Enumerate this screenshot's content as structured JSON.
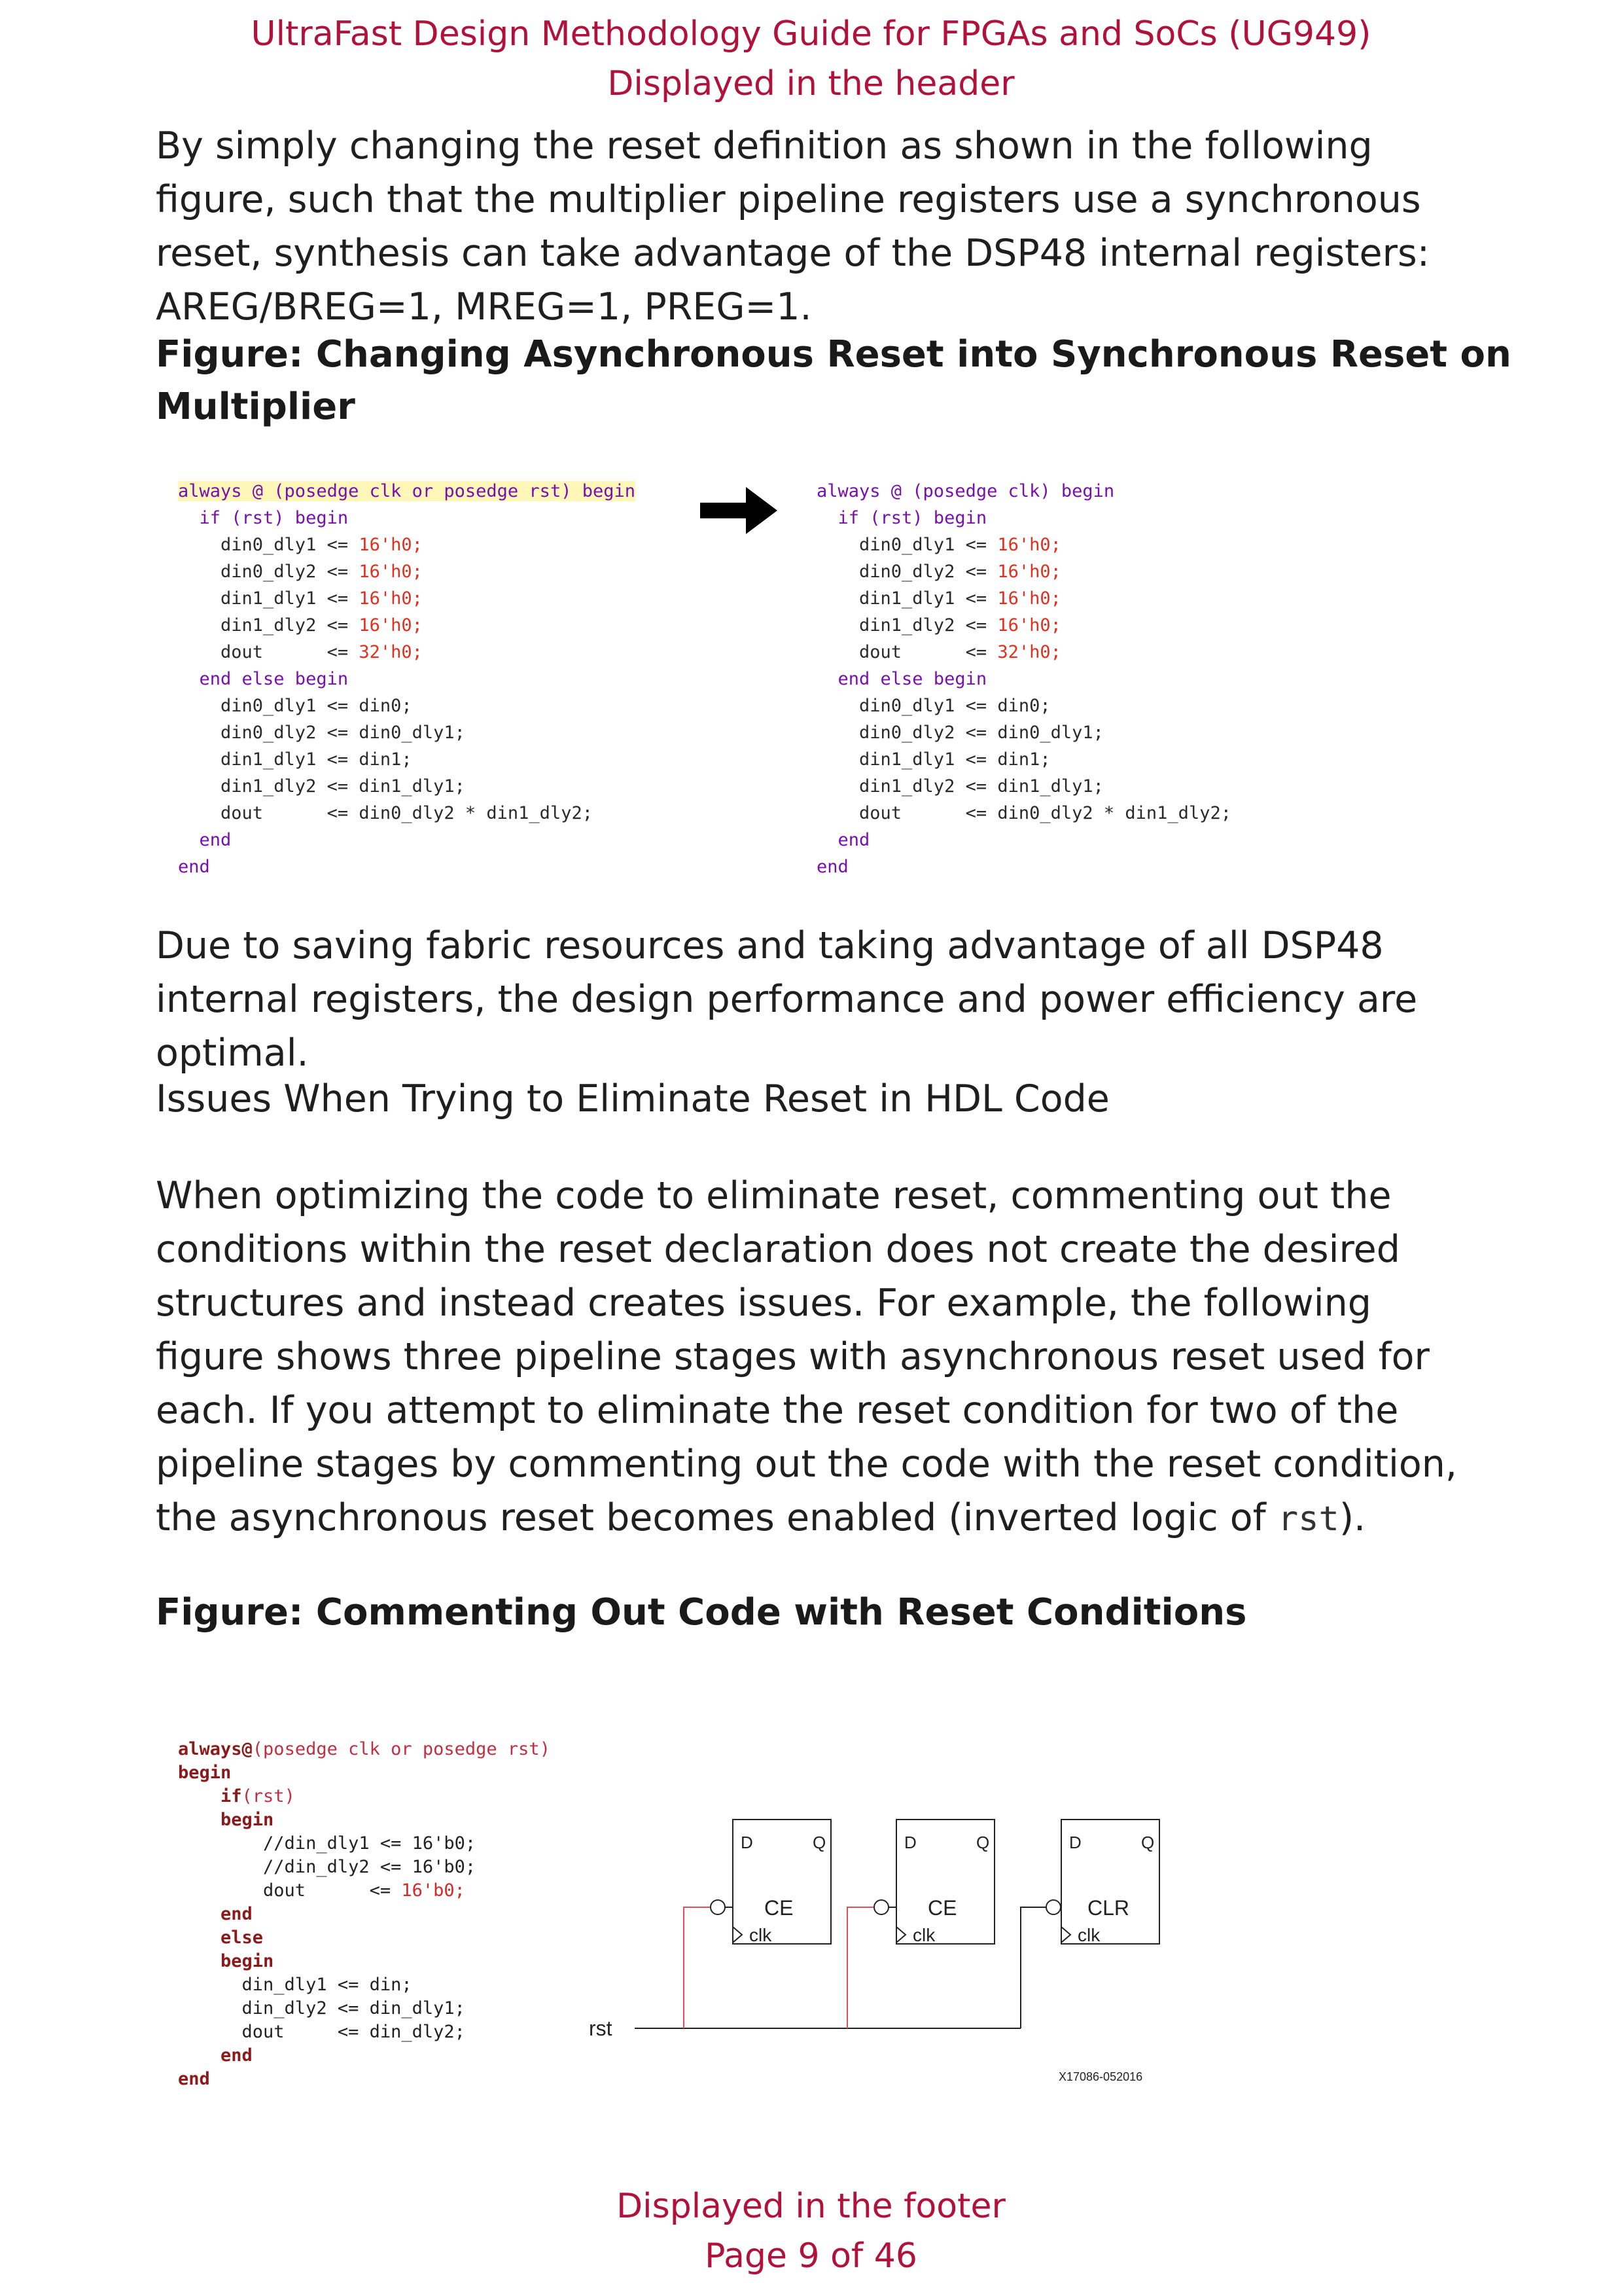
{
  "header": {
    "line1": "UltraFast Design Methodology Guide for FPGAs and SoCs (UG949)",
    "line2": "Displayed in the header"
  },
  "para1": "By simply changing the reset definition as shown in the following figure, such that the multiplier pipeline registers use a synchronous reset, synthesis can take advantage of the DSP48 internal registers: AREG/BREG=1, MREG=1, PREG=1.",
  "figure1": {
    "title": "Figure: Changing Asynchronous Reset into Synchronous Reset on Multiplier",
    "left_sensitivity": "always @ (posedge clk or posedge rst) begin",
    "right_sensitivity": "always @ (posedge clk) begin",
    "if_line": "  if (rst) begin",
    "reset_lines": [
      {
        "name": "    din0_dly1 <= ",
        "value": "16'h0;"
      },
      {
        "name": "    din0_dly2 <= ",
        "value": "16'h0;"
      },
      {
        "name": "    din1_dly1 <= ",
        "value": "16'h0;"
      },
      {
        "name": "    din1_dly2 <= ",
        "value": "16'h0;"
      },
      {
        "name": "    dout      <= ",
        "value": "32'h0;"
      }
    ],
    "else_line": "  end else begin",
    "body_lines": [
      "    din0_dly1 <= din0;",
      "    din0_dly2 <= din0_dly1;",
      "    din1_dly1 <= din1;",
      "    din1_dly2 <= din1_dly1;",
      "    dout      <= din0_dly2 * din1_dly2;"
    ],
    "end_inner": "  end",
    "end_outer": "end"
  },
  "para2": "Due to saving fabric resources and taking advantage of all DSP48 internal registers, the design performance and power efficiency are optimal.",
  "subheading": "Issues When Trying to Eliminate Reset in HDL Code",
  "para3": "When optimizing the code to eliminate reset, commenting out the conditions within the reset declaration does not create the desired structures and instead creates issues. For example, the following figure shows three pipeline stages with asynchronous reset used for each. If you attempt to eliminate the reset condition for two of the pipeline stages by commenting out the code with the reset condition, the asynchronous reset becomes enabled (inverted logic of",
  "para3_code": "rst",
  "para3_tail": ").",
  "figure2": {
    "title": "Figure: Commenting Out Code with Reset Conditions",
    "l1_kw": "always@",
    "l1_rest": "(posedge clk or posedge rst)",
    "l2": "begin",
    "l3_kw": "    if",
    "l3_rest": "(rst)",
    "l4": "    begin",
    "l5": "        //din_dly1 <= 16'b0;",
    "l6": "        //din_dly2 <= 16'b0;",
    "l7_a": "        dout      <= ",
    "l7_b": "16'b0;",
    "l8": "    end",
    "l9": "    else",
    "l10": "    begin",
    "l11": "      din_dly1 <= din;",
    "l12": "      din_dly2 <= din_dly1;",
    "l13": "      dout     <= din_dly2;",
    "l14": "    end",
    "l15": "end",
    "schematic": {
      "rst_label": "rst",
      "ff": [
        {
          "d": "D",
          "q": "Q",
          "ctrl": "CE",
          "clk": "clk"
        },
        {
          "d": "D",
          "q": "Q",
          "ctrl": "CE",
          "clk": "clk"
        },
        {
          "d": "D",
          "q": "Q",
          "ctrl": "CLR",
          "clk": "clk"
        }
      ],
      "figure_id": "X17086-052016"
    }
  },
  "footer": {
    "line1": "Displayed in the footer",
    "line2": "Page 9 of 46"
  }
}
